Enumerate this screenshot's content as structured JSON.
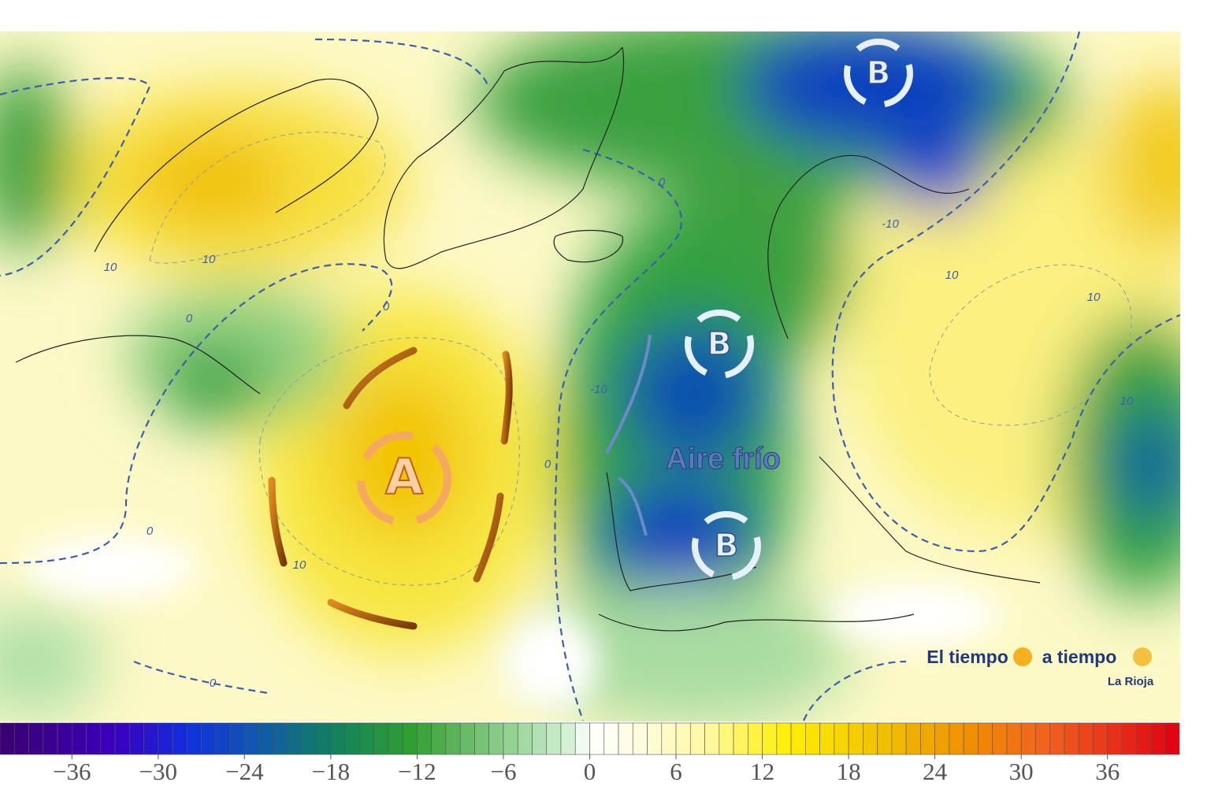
{
  "map": {
    "pressure_labels": {
      "high": "A",
      "low_north": "B",
      "low_britain": "B",
      "low_iberia": "B"
    },
    "annotation": "Aire frío",
    "contour_labels": [
      "10",
      "10",
      "10",
      "10",
      "10",
      "10",
      "0",
      "0",
      "0",
      "0",
      "0",
      "0",
      "-10",
      "-10"
    ],
    "watermark": {
      "left": "El tiempo",
      "right": "a tiempo",
      "region": "La Rioja"
    }
  },
  "colorbar": {
    "lim": [
      -41,
      41
    ],
    "ticks": [
      {
        "value": -36,
        "label": "−36"
      },
      {
        "value": -30,
        "label": "−30"
      },
      {
        "value": -24,
        "label": "−24"
      },
      {
        "value": -18,
        "label": "−18"
      },
      {
        "value": -12,
        "label": "−12"
      },
      {
        "value": -6,
        "label": "−6"
      },
      0,
      6,
      12,
      18,
      24,
      30,
      36
    ]
  }
}
